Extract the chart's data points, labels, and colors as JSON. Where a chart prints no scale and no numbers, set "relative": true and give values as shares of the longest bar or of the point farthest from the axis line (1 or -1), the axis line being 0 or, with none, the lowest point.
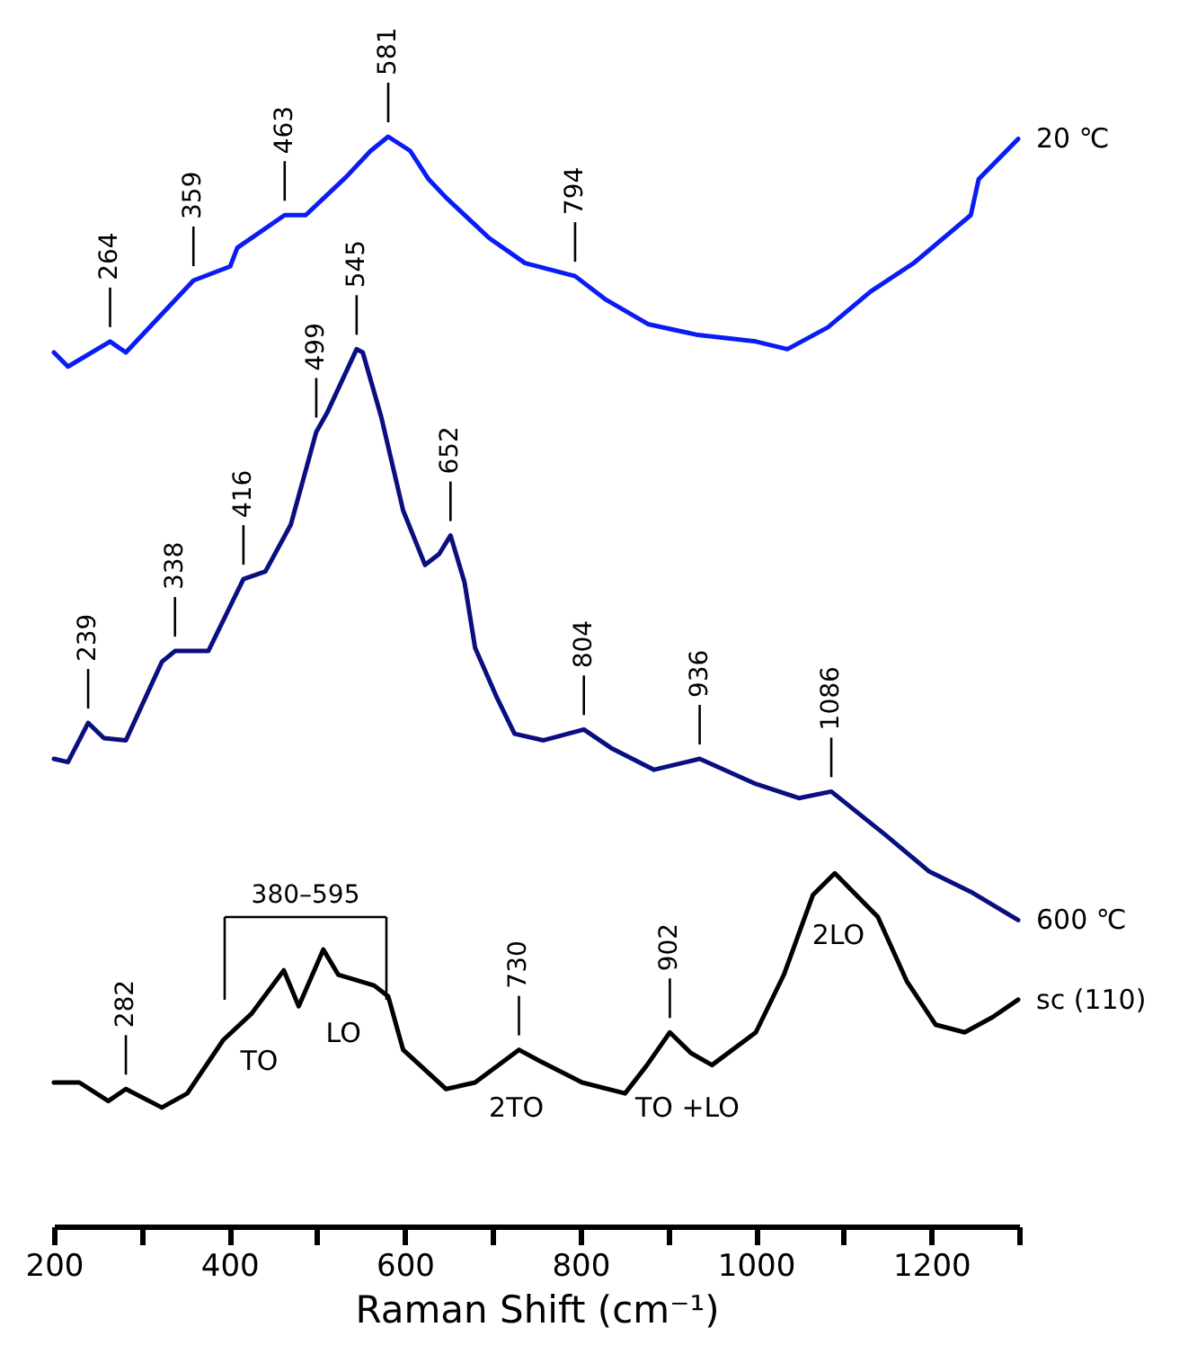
{
  "chart_data": {
    "type": "line",
    "relative": true,
    "xlabel": "Raman Shift (cm⁻¹)",
    "xlim": [
      200,
      1300
    ],
    "xticks": [
      200,
      {
        "value": 300,
        "label": null
      },
      400,
      {
        "value": 500,
        "label": null
      },
      600,
      {
        "value": 700,
        "label": null
      },
      800,
      {
        "value": 900,
        "label": null
      },
      1000,
      {
        "value": 1100,
        "label": null
      },
      1200,
      {
        "value": 1300,
        "label": null
      }
    ],
    "grid": false,
    "tick_labels": "x",
    "marker": "none",
    "line_style": "solid",
    "series": [
      {
        "name": "20 ℃",
        "color": "#0a1cf5",
        "x": [
          200,
          216,
          264,
          282,
          359,
          401,
          409,
          463,
          487,
          533,
          561,
          581,
          606,
          627,
          647,
          696,
          737,
          794,
          828,
          877,
          934,
          1000,
          1036,
          1082,
          1131,
          1180,
          1245,
          1254,
          1299
        ],
        "values": [
          0.802,
          0.789,
          0.812,
          0.802,
          0.868,
          0.881,
          0.898,
          0.928,
          0.928,
          0.963,
          0.987,
          1.0,
          0.987,
          0.961,
          0.944,
          0.907,
          0.884,
          0.872,
          0.851,
          0.828,
          0.818,
          0.812,
          0.805,
          0.825,
          0.858,
          0.884,
          0.928,
          0.961,
          0.998
        ]
      },
      {
        "name": "600 ℃",
        "color": "#0a0f80",
        "x": [
          200,
          216,
          239,
          257,
          282,
          323,
          338,
          376,
          416,
          441,
          470,
          499,
          511,
          545,
          552,
          573,
          598,
          623,
          639,
          652,
          668,
          680,
          705,
          725,
          758,
          804,
          835,
          884,
          936,
          1000,
          1049,
          1086,
          1148,
          1197,
          1245,
          1299
        ],
        "values": [
          0.429,
          0.426,
          0.462,
          0.448,
          0.446,
          0.518,
          0.528,
          0.528,
          0.594,
          0.601,
          0.644,
          0.729,
          0.746,
          0.805,
          0.802,
          0.743,
          0.657,
          0.607,
          0.617,
          0.634,
          0.591,
          0.531,
          0.485,
          0.452,
          0.446,
          0.456,
          0.439,
          0.419,
          0.429,
          0.406,
          0.393,
          0.399,
          0.359,
          0.326,
          0.307,
          0.281
        ]
      },
      {
        "name": "sc (110)",
        "color": "#000000",
        "x": [
          200,
          229,
          262,
          282,
          323,
          352,
          393,
          425,
          462,
          479,
          507,
          524,
          565,
          581,
          598,
          647,
          680,
          730,
          753,
          802,
          851,
          876,
          902,
          926,
          950,
          1000,
          1032,
          1065,
          1090,
          1139,
          1172,
          1205,
          1238,
          1270,
          1299
        ],
        "values": [
          0.132,
          0.132,
          0.115,
          0.126,
          0.109,
          0.122,
          0.171,
          0.195,
          0.235,
          0.202,
          0.254,
          0.231,
          0.221,
          0.211,
          0.162,
          0.126,
          0.132,
          0.162,
          0.152,
          0.132,
          0.122,
          0.148,
          0.178,
          0.159,
          0.148,
          0.178,
          0.231,
          0.304,
          0.324,
          0.284,
          0.225,
          0.185,
          0.178,
          0.192,
          0.208
        ]
      }
    ],
    "annotations": [
      {
        "text": "264",
        "x": 264,
        "y": 0.812
      },
      {
        "text": "359",
        "x": 359,
        "y": 0.868
      },
      {
        "text": "463",
        "x": 463,
        "y": 0.928
      },
      {
        "text": "581",
        "x": 581,
        "y": 1.0
      },
      {
        "text": "794",
        "x": 794,
        "y": 0.872
      },
      {
        "text": "239",
        "x": 239,
        "y": 0.462
      },
      {
        "text": "338",
        "x": 338,
        "y": 0.528
      },
      {
        "text": "416",
        "x": 416,
        "y": 0.594
      },
      {
        "text": "499",
        "x": 499,
        "y": 0.729
      },
      {
        "text": "545",
        "x": 545,
        "y": 0.805
      },
      {
        "text": "652",
        "x": 652,
        "y": 0.634
      },
      {
        "text": "804",
        "x": 804,
        "y": 0.456
      },
      {
        "text": "936",
        "x": 936,
        "y": 0.429
      },
      {
        "text": "1086",
        "x": 1086,
        "y": 0.399
      },
      {
        "text": "282",
        "x": 282,
        "y": 0.126
      },
      {
        "text": "730",
        "x": 730,
        "y": 0.162
      },
      {
        "text": "902",
        "x": 902,
        "y": 0.178
      },
      "380–595",
      {
        "text": "TO",
        "x": 434,
        "y": 0.205
      },
      {
        "text": "LO",
        "x": 530,
        "y": 0.23
      },
      {
        "text": "2TO",
        "x": 727,
        "y": 0.162
      },
      {
        "text": "TO +LO",
        "x": 922,
        "y": 0.162
      },
      {
        "text": "2LO",
        "x": 1094,
        "y": 0.32
      }
    ]
  }
}
